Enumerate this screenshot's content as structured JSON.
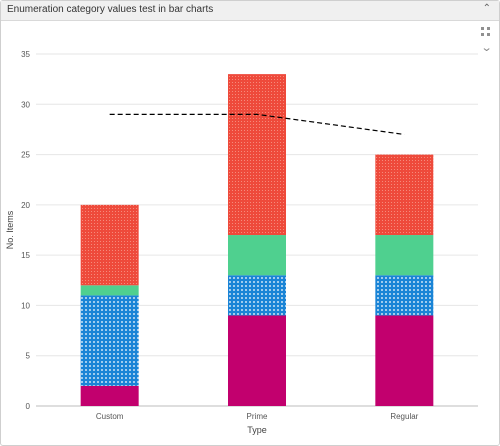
{
  "widget": {
    "title": "Enumeration category values test in bar charts",
    "collapse_icon": "chevron-up-icon",
    "drag_icon": "drag-handle-icon",
    "menu_icon": "chevron-down-icon"
  },
  "chart_data": {
    "type": "bar",
    "stacked": true,
    "categories": [
      "Custom",
      "Prime",
      "Regular"
    ],
    "series": [
      {
        "color": "#c2006e",
        "pattern": "solid",
        "values": [
          2,
          9,
          9
        ]
      },
      {
        "color": "#1a84d6",
        "pattern": "dots",
        "values": [
          9,
          4,
          4
        ]
      },
      {
        "color": "#4fd08f",
        "pattern": "solid",
        "values": [
          1,
          4,
          4
        ]
      },
      {
        "color": "#ee4a3b",
        "pattern": "fine-dots",
        "values": [
          8,
          16,
          8
        ]
      }
    ],
    "line": {
      "style": "dashed",
      "color": "#000000",
      "values": [
        29,
        29,
        27
      ]
    },
    "xlabel": "Type",
    "ylabel": "No. Items",
    "ylim": [
      0,
      35
    ],
    "yticks": [
      "0",
      "5",
      "10",
      "15",
      "20",
      "25",
      "30",
      "35"
    ],
    "grid": true
  }
}
